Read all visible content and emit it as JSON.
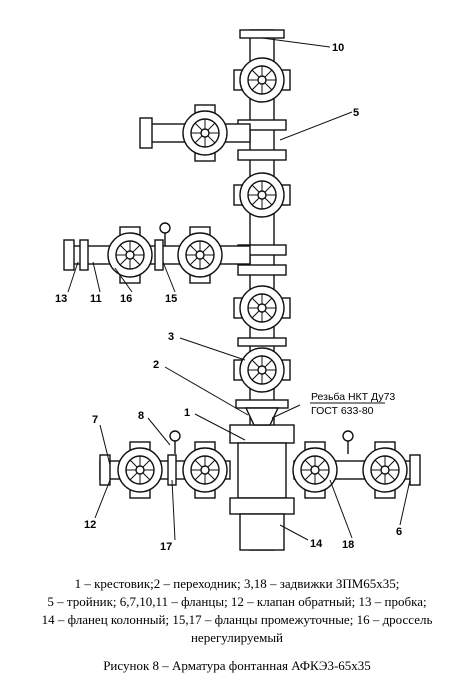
{
  "callouts": [
    "10",
    "5",
    "3",
    "2",
    "1",
    "8",
    "7",
    "12",
    "17",
    "14",
    "18",
    "6",
    "13",
    "11",
    "16",
    "15"
  ],
  "thread_note": [
    "Резьба НКТ Ду73",
    "ГОСТ 633-80"
  ],
  "legend": [
    "1 – крестовик;2 – переходник; 3,18 – задвижки ЗПМ65х35;",
    "5 – тройник; 6,7,10,11 – фланцы; 12 – клапан обратный; 13 – пробка;",
    "14 – фланец колонный; 15,17 – фланцы промежуточные; 16 – дроссель",
    "нерегулируемый"
  ],
  "caption": "Рисунок 8 – Арматура фонтанная АФКЭ3-65х35"
}
